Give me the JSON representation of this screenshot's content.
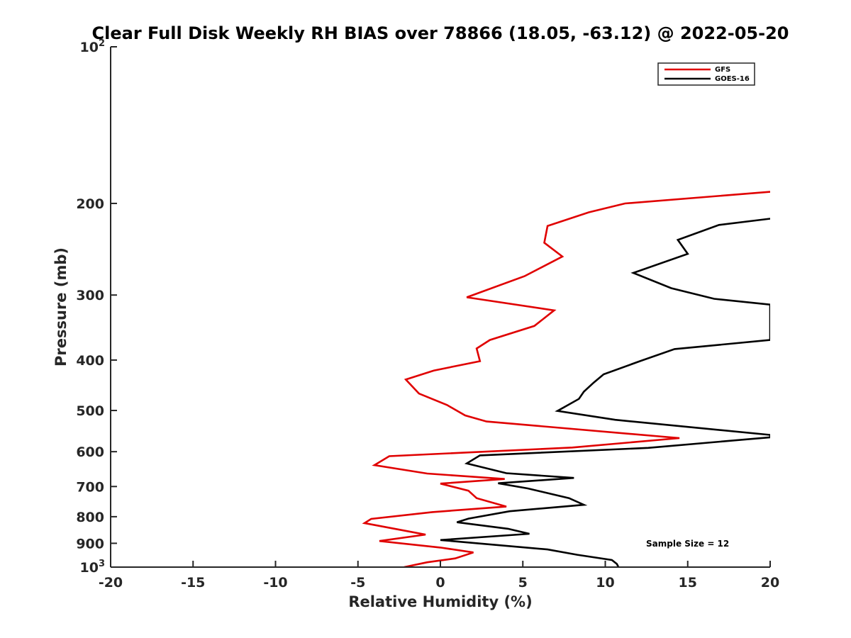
{
  "chart_data": {
    "type": "line",
    "title": "Clear Full Disk Weekly RH BIAS over 78866 (18.05, -63.12) @ 2022-05-20",
    "xlabel": "Relative Humidity (%)",
    "ylabel": "Pressure (mb)",
    "xlim": [
      -20,
      20
    ],
    "ylim": [
      100,
      1000
    ],
    "y_scale": "log",
    "y_reversed": true,
    "grid": false,
    "x_ticks": [
      -20,
      -15,
      -10,
      -5,
      0,
      5,
      10,
      15,
      20
    ],
    "x_tick_labels": [
      "-20",
      "-15",
      "-10",
      "-5",
      "0",
      "5",
      "10",
      "15",
      "20"
    ],
    "y_ticks": [
      {
        "value": 100,
        "base": "10",
        "exp": "2"
      },
      {
        "value": 200,
        "label": "200"
      },
      {
        "value": 300,
        "label": "300"
      },
      {
        "value": 400,
        "label": "400"
      },
      {
        "value": 500,
        "label": "500"
      },
      {
        "value": 600,
        "label": "600"
      },
      {
        "value": 700,
        "label": "700"
      },
      {
        "value": 800,
        "label": "800"
      },
      {
        "value": 900,
        "label": "900"
      },
      {
        "value": 1000,
        "base": "10",
        "exp": "3"
      }
    ],
    "legend_position": "top-right",
    "annotation": "Sample Size = 12",
    "series": [
      {
        "name": "GFS",
        "color": "#e00000",
        "points": [
          [
            20.0,
            190
          ],
          [
            11.2,
            200
          ],
          [
            9.0,
            208
          ],
          [
            6.5,
            221
          ],
          [
            6.3,
            238
          ],
          [
            7.4,
            253
          ],
          [
            5.1,
            276
          ],
          [
            1.6,
            303
          ],
          [
            6.9,
            321
          ],
          [
            5.7,
            344
          ],
          [
            3.0,
            366
          ],
          [
            2.2,
            380
          ],
          [
            2.4,
            402
          ],
          [
            -0.4,
            419
          ],
          [
            -2.1,
            436
          ],
          [
            -1.3,
            464
          ],
          [
            0.4,
            488
          ],
          [
            1.5,
            511
          ],
          [
            2.8,
            525
          ],
          [
            14.5,
            565
          ],
          [
            8.0,
            589
          ],
          [
            -3.1,
            612
          ],
          [
            -4.0,
            637
          ],
          [
            -0.8,
            661
          ],
          [
            3.9,
            677
          ],
          [
            0.0,
            691
          ],
          [
            1.7,
            713
          ],
          [
            2.2,
            737
          ],
          [
            4.0,
            765
          ],
          [
            -0.5,
            784
          ],
          [
            -4.2,
            808
          ],
          [
            -4.6,
            823
          ],
          [
            -2.0,
            853
          ],
          [
            -0.9,
            866
          ],
          [
            -3.7,
            891
          ],
          [
            0.0,
            917
          ],
          [
            2.0,
            937
          ],
          [
            0.9,
            962
          ],
          [
            -0.8,
            979
          ],
          [
            -2.2,
            1000
          ]
        ]
      },
      {
        "name": "GOES-16",
        "color": "#000000",
        "points": [
          [
            20.0,
            214
          ],
          [
            16.9,
            220
          ],
          [
            14.4,
            235
          ],
          [
            15.0,
            250
          ],
          [
            11.7,
            272
          ],
          [
            14.0,
            291
          ],
          [
            16.6,
            305
          ],
          [
            20.0,
            313
          ],
          [
            20.0,
            366
          ],
          [
            14.2,
            381
          ],
          [
            12.1,
            402
          ],
          [
            9.9,
            426
          ],
          [
            9.3,
            442
          ],
          [
            8.7,
            460
          ],
          [
            8.4,
            475
          ],
          [
            7.1,
            501
          ],
          [
            10.6,
            521
          ],
          [
            20.0,
            557
          ],
          [
            20.0,
            563
          ],
          [
            12.6,
            590
          ],
          [
            2.4,
            610
          ],
          [
            1.6,
            632
          ],
          [
            4.0,
            660
          ],
          [
            8.1,
            674
          ],
          [
            3.5,
            690
          ],
          [
            5.3,
            706
          ],
          [
            7.8,
            737
          ],
          [
            8.7,
            759
          ],
          [
            4.2,
            781
          ],
          [
            1.7,
            807
          ],
          [
            1.0,
            820
          ],
          [
            4.1,
            844
          ],
          [
            5.4,
            863
          ],
          [
            0.0,
            887
          ],
          [
            6.5,
            925
          ],
          [
            8.3,
            947
          ],
          [
            10.4,
            969
          ],
          [
            10.7,
            986
          ],
          [
            10.8,
            1000
          ]
        ]
      }
    ]
  }
}
